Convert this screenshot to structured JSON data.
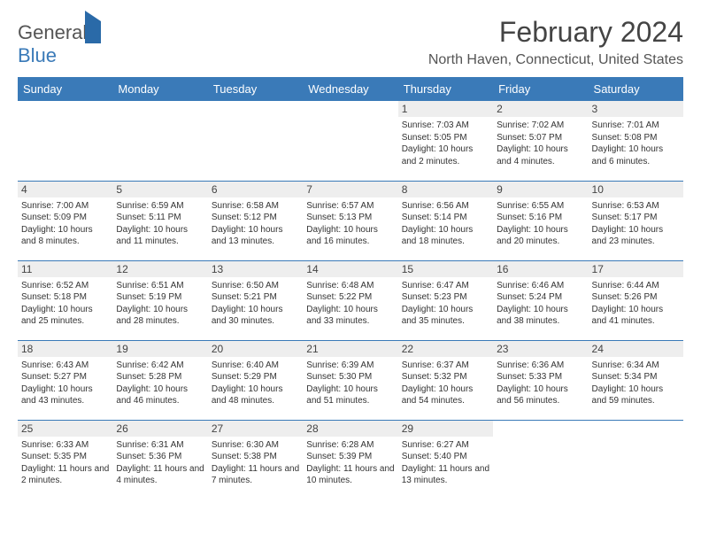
{
  "logo": {
    "text1": "General",
    "text2": "Blue"
  },
  "title": "February 2024",
  "location": "North Haven, Connecticut, United States",
  "colors": {
    "header_bg": "#3a7ab8",
    "header_text": "#ffffff",
    "daynum_bg": "#eeeeee",
    "border": "#3a7ab8",
    "body_bg": "#ffffff",
    "text": "#333333"
  },
  "fonts": {
    "title_size": 32,
    "location_size": 16,
    "header_size": 13,
    "daynum_size": 12,
    "detail_size": 10
  },
  "day_names": [
    "Sunday",
    "Monday",
    "Tuesday",
    "Wednesday",
    "Thursday",
    "Friday",
    "Saturday"
  ],
  "weeks": [
    [
      null,
      null,
      null,
      null,
      {
        "n": "1",
        "sr": "Sunrise: 7:03 AM",
        "ss": "Sunset: 5:05 PM",
        "dl": "Daylight: 10 hours and 2 minutes."
      },
      {
        "n": "2",
        "sr": "Sunrise: 7:02 AM",
        "ss": "Sunset: 5:07 PM",
        "dl": "Daylight: 10 hours and 4 minutes."
      },
      {
        "n": "3",
        "sr": "Sunrise: 7:01 AM",
        "ss": "Sunset: 5:08 PM",
        "dl": "Daylight: 10 hours and 6 minutes."
      }
    ],
    [
      {
        "n": "4",
        "sr": "Sunrise: 7:00 AM",
        "ss": "Sunset: 5:09 PM",
        "dl": "Daylight: 10 hours and 8 minutes."
      },
      {
        "n": "5",
        "sr": "Sunrise: 6:59 AM",
        "ss": "Sunset: 5:11 PM",
        "dl": "Daylight: 10 hours and 11 minutes."
      },
      {
        "n": "6",
        "sr": "Sunrise: 6:58 AM",
        "ss": "Sunset: 5:12 PM",
        "dl": "Daylight: 10 hours and 13 minutes."
      },
      {
        "n": "7",
        "sr": "Sunrise: 6:57 AM",
        "ss": "Sunset: 5:13 PM",
        "dl": "Daylight: 10 hours and 16 minutes."
      },
      {
        "n": "8",
        "sr": "Sunrise: 6:56 AM",
        "ss": "Sunset: 5:14 PM",
        "dl": "Daylight: 10 hours and 18 minutes."
      },
      {
        "n": "9",
        "sr": "Sunrise: 6:55 AM",
        "ss": "Sunset: 5:16 PM",
        "dl": "Daylight: 10 hours and 20 minutes."
      },
      {
        "n": "10",
        "sr": "Sunrise: 6:53 AM",
        "ss": "Sunset: 5:17 PM",
        "dl": "Daylight: 10 hours and 23 minutes."
      }
    ],
    [
      {
        "n": "11",
        "sr": "Sunrise: 6:52 AM",
        "ss": "Sunset: 5:18 PM",
        "dl": "Daylight: 10 hours and 25 minutes."
      },
      {
        "n": "12",
        "sr": "Sunrise: 6:51 AM",
        "ss": "Sunset: 5:19 PM",
        "dl": "Daylight: 10 hours and 28 minutes."
      },
      {
        "n": "13",
        "sr": "Sunrise: 6:50 AM",
        "ss": "Sunset: 5:21 PM",
        "dl": "Daylight: 10 hours and 30 minutes."
      },
      {
        "n": "14",
        "sr": "Sunrise: 6:48 AM",
        "ss": "Sunset: 5:22 PM",
        "dl": "Daylight: 10 hours and 33 minutes."
      },
      {
        "n": "15",
        "sr": "Sunrise: 6:47 AM",
        "ss": "Sunset: 5:23 PM",
        "dl": "Daylight: 10 hours and 35 minutes."
      },
      {
        "n": "16",
        "sr": "Sunrise: 6:46 AM",
        "ss": "Sunset: 5:24 PM",
        "dl": "Daylight: 10 hours and 38 minutes."
      },
      {
        "n": "17",
        "sr": "Sunrise: 6:44 AM",
        "ss": "Sunset: 5:26 PM",
        "dl": "Daylight: 10 hours and 41 minutes."
      }
    ],
    [
      {
        "n": "18",
        "sr": "Sunrise: 6:43 AM",
        "ss": "Sunset: 5:27 PM",
        "dl": "Daylight: 10 hours and 43 minutes."
      },
      {
        "n": "19",
        "sr": "Sunrise: 6:42 AM",
        "ss": "Sunset: 5:28 PM",
        "dl": "Daylight: 10 hours and 46 minutes."
      },
      {
        "n": "20",
        "sr": "Sunrise: 6:40 AM",
        "ss": "Sunset: 5:29 PM",
        "dl": "Daylight: 10 hours and 48 minutes."
      },
      {
        "n": "21",
        "sr": "Sunrise: 6:39 AM",
        "ss": "Sunset: 5:30 PM",
        "dl": "Daylight: 10 hours and 51 minutes."
      },
      {
        "n": "22",
        "sr": "Sunrise: 6:37 AM",
        "ss": "Sunset: 5:32 PM",
        "dl": "Daylight: 10 hours and 54 minutes."
      },
      {
        "n": "23",
        "sr": "Sunrise: 6:36 AM",
        "ss": "Sunset: 5:33 PM",
        "dl": "Daylight: 10 hours and 56 minutes."
      },
      {
        "n": "24",
        "sr": "Sunrise: 6:34 AM",
        "ss": "Sunset: 5:34 PM",
        "dl": "Daylight: 10 hours and 59 minutes."
      }
    ],
    [
      {
        "n": "25",
        "sr": "Sunrise: 6:33 AM",
        "ss": "Sunset: 5:35 PM",
        "dl": "Daylight: 11 hours and 2 minutes."
      },
      {
        "n": "26",
        "sr": "Sunrise: 6:31 AM",
        "ss": "Sunset: 5:36 PM",
        "dl": "Daylight: 11 hours and 4 minutes."
      },
      {
        "n": "27",
        "sr": "Sunrise: 6:30 AM",
        "ss": "Sunset: 5:38 PM",
        "dl": "Daylight: 11 hours and 7 minutes."
      },
      {
        "n": "28",
        "sr": "Sunrise: 6:28 AM",
        "ss": "Sunset: 5:39 PM",
        "dl": "Daylight: 11 hours and 10 minutes."
      },
      {
        "n": "29",
        "sr": "Sunrise: 6:27 AM",
        "ss": "Sunset: 5:40 PM",
        "dl": "Daylight: 11 hours and 13 minutes."
      },
      null,
      null
    ]
  ]
}
